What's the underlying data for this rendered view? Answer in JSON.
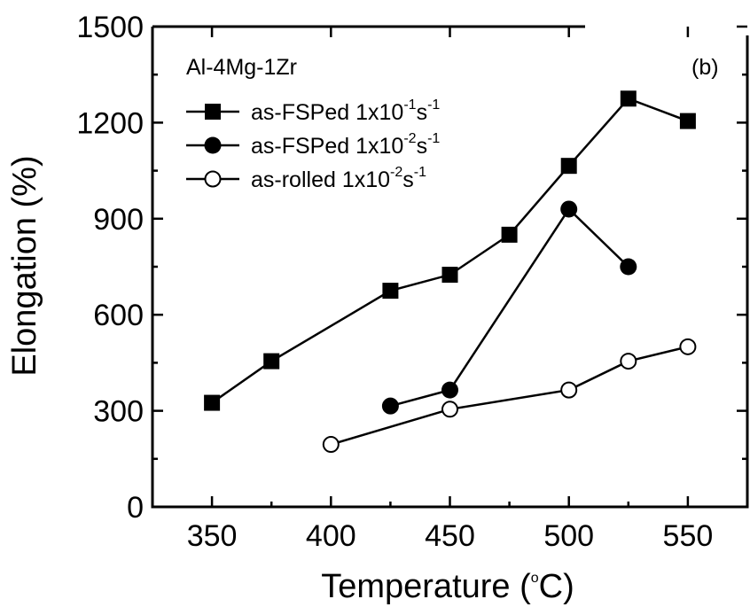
{
  "chart_data": {
    "type": "line",
    "xlabel": "Temperature (°C)",
    "xlabel_parts": {
      "pre": "Temperature (",
      "sup": "o",
      "post": "C)"
    },
    "ylabel": "Elongation (%)",
    "xlim": [
      325,
      575
    ],
    "ylim": [
      0,
      1500
    ],
    "xticks": [
      350,
      400,
      450,
      500,
      550
    ],
    "yticks": [
      0,
      300,
      600,
      900,
      1200,
      1500
    ],
    "annotations": {
      "alloy": "Al-4Mg-1Zr",
      "panel": "(b)"
    },
    "legend_position": "top-left",
    "series": [
      {
        "name": "as-FSPed 1x10-1s-1",
        "label_parts": {
          "pre": "as-FSPed 1x10",
          "sup1": "-1",
          "mid": "s",
          "sup2": "-1"
        },
        "marker": "filled-square",
        "x": [
          350,
          375,
          425,
          450,
          475,
          500,
          525,
          550
        ],
        "y": [
          325,
          455,
          675,
          725,
          850,
          1065,
          1275,
          1205
        ]
      },
      {
        "name": "as-FSPed 1x10-2s-1",
        "label_parts": {
          "pre": "as-FSPed 1x10",
          "sup1": "-2",
          "mid": "s",
          "sup2": "-1"
        },
        "marker": "filled-circle",
        "x": [
          425,
          450,
          500,
          525
        ],
        "y": [
          315,
          365,
          930,
          750
        ]
      },
      {
        "name": "as-rolled 1x10-2s-1",
        "label_parts": {
          "pre": "as-rolled 1x10",
          "sup1": "-2",
          "mid": "s",
          "sup2": "-1"
        },
        "marker": "open-circle",
        "x": [
          400,
          450,
          500,
          525,
          550
        ],
        "y": [
          195,
          305,
          365,
          455,
          500
        ]
      }
    ]
  }
}
